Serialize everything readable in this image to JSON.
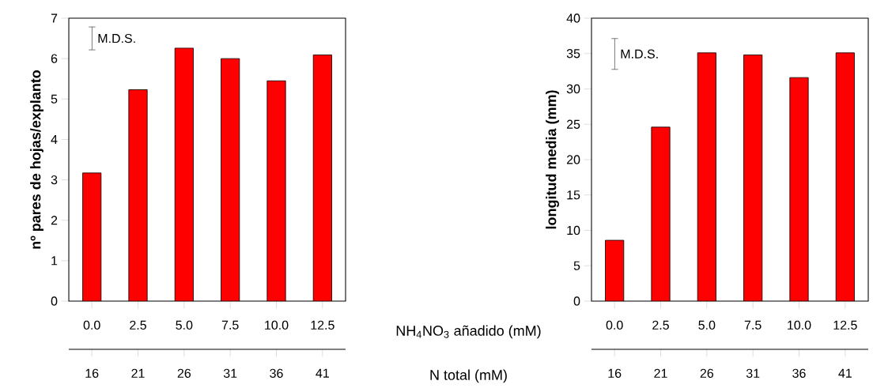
{
  "chart_data": [
    {
      "type": "bar",
      "ylabel": "nº pares de hojas/explanto",
      "xlabel": "NH$_{4}$NO$_{3}$ añadido (mM)",
      "x2label": "N total (mM)",
      "x": [
        0,
        2.5,
        5,
        7.5,
        10,
        12.5
      ],
      "values": [
        3.17,
        5.23,
        6.26,
        6.0,
        5.45,
        6.09
      ],
      "color": "#ff0000",
      "xlim": [
        -1.25,
        13.75
      ],
      "xticks": [
        {
          "value": 0,
          "label": "0.0"
        },
        {
          "value": 2.5,
          "label": "2.5"
        },
        {
          "value": 5,
          "label": "5.0"
        },
        {
          "value": 7.5,
          "label": "7.5"
        },
        {
          "value": 10,
          "label": "10.0"
        },
        {
          "value": 12.5,
          "label": "12.5"
        }
      ],
      "x2lim": [
        13.5,
        43.5
      ],
      "x2ticks": [
        16,
        21,
        26,
        31,
        36,
        41
      ],
      "ylim": [
        0,
        7
      ],
      "yticks": [
        0,
        1,
        2,
        3,
        4,
        5,
        6,
        7
      ],
      "annotations": [
        "M.D.S."
      ]
    },
    {
      "type": "bar",
      "ylabel": "longitud media (mm)",
      "x": [
        0,
        2.5,
        5,
        7.5,
        10,
        12.5
      ],
      "values": [
        8.6,
        24.6,
        35.1,
        34.8,
        31.6,
        35.1
      ],
      "color": "#ff0000",
      "xlim": [
        -1.25,
        13.75
      ],
      "xticks": [
        {
          "value": 0,
          "label": "0.0"
        },
        {
          "value": 2.5,
          "label": "2.5"
        },
        {
          "value": 5,
          "label": "5.0"
        },
        {
          "value": 7.5,
          "label": "7.5"
        },
        {
          "value": 10,
          "label": "10.0"
        },
        {
          "value": 12.5,
          "label": "12.5"
        }
      ],
      "x2lim": [
        13.5,
        43.5
      ],
      "x2ticks": [
        16,
        21,
        26,
        31,
        36,
        41
      ],
      "ylim": [
        0,
        40
      ],
      "yticks": [
        0,
        5,
        10,
        15,
        20,
        25,
        30,
        35,
        40
      ],
      "annotations": [
        "M.D.S."
      ]
    }
  ]
}
